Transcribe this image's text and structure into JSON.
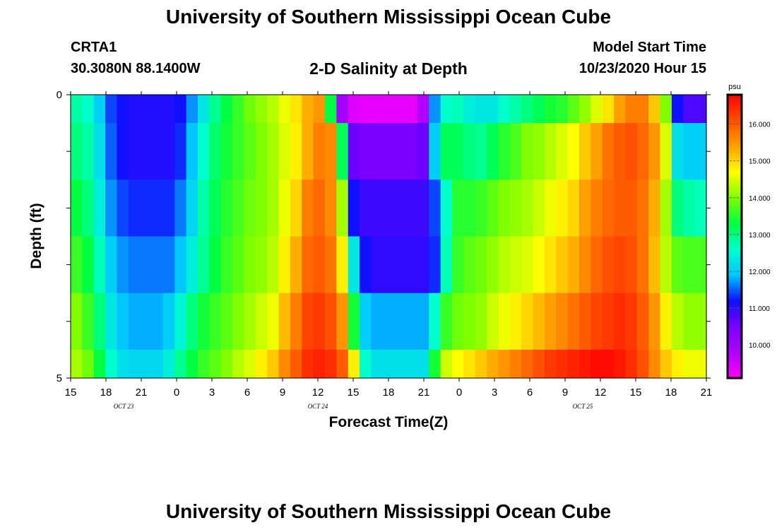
{
  "page": {
    "title_top": "University of Southern Mississippi Ocean Cube",
    "title_bottom": "University of Southern Mississippi Ocean Cube",
    "station": "CRTA1",
    "coords": "30.3080N 88.1400W",
    "chart_title": "2-D Salinity at Depth",
    "model_start_label": "Model Start Time",
    "model_start_value": "10/23/2020 Hour 15"
  },
  "colors": {
    "scale": [
      "#ff00ff",
      "#b000ff",
      "#7a00ff",
      "#1010ff",
      "#00c8ff",
      "#00ffcc",
      "#00ff40",
      "#80ff00",
      "#ffff00",
      "#ffa000",
      "#ff5000",
      "#ff0000"
    ]
  },
  "chart_data": {
    "type": "heatmap",
    "title": "2-D Salinity at Depth",
    "xlabel": "Forecast Time(Z)",
    "ylabel": "Depth (ft)",
    "x_tick_labels": [
      "15",
      "18",
      "21",
      "0",
      "3",
      "6",
      "9",
      "12",
      "15",
      "18",
      "21",
      "0",
      "3",
      "6",
      "9",
      "12",
      "15",
      "18",
      "21"
    ],
    "x_range_hours": [
      0,
      54
    ],
    "date_labels": [
      {
        "text": "OCT 23",
        "hour": 4.5
      },
      {
        "text": "OCT 24",
        "hour": 21
      },
      {
        "text": "OCT 25",
        "hour": 43.5
      }
    ],
    "y_tick_labels": [
      "0",
      "5"
    ],
    "ylim": [
      0,
      5
    ],
    "colorbar": {
      "unit": "psu",
      "range": [
        9.1,
        16.8
      ],
      "tick_labels": [
        "10.000",
        "11.000",
        "12.000",
        "13.000",
        "14.000",
        "15.000",
        "16.000"
      ],
      "tick_values": [
        10,
        11,
        12,
        13,
        14,
        15,
        16
      ]
    },
    "time_hours": [
      0,
      1,
      2,
      3,
      4,
      5,
      6,
      7,
      8,
      9,
      10,
      11,
      12,
      13,
      14,
      15,
      16,
      17,
      18,
      19,
      20,
      21,
      22,
      23,
      24,
      25,
      26,
      27,
      28,
      29,
      30,
      31,
      32,
      33,
      34,
      35,
      36,
      37,
      38,
      39,
      40,
      41,
      42,
      43,
      44,
      45,
      46,
      47,
      48,
      49,
      50,
      51,
      52,
      53,
      54
    ],
    "layers": [
      {
        "depth": "0.0-0.5",
        "values": [
          12.8,
          12.6,
          12.0,
          11.4,
          11.2,
          11.1,
          11.1,
          11.1,
          11.1,
          11.2,
          11.7,
          12.3,
          12.9,
          13.3,
          13.6,
          13.9,
          14.1,
          14.3,
          14.6,
          14.9,
          15.3,
          15.5,
          13.3,
          10.0,
          9.4,
          9.3,
          9.3,
          9.3,
          9.3,
          9.3,
          9.8,
          11.7,
          12.6,
          12.7,
          12.4,
          12.3,
          12.3,
          12.6,
          12.8,
          13.0,
          13.2,
          13.4,
          13.5,
          13.8,
          14.1,
          14.5,
          14.9,
          15.4,
          15.7,
          15.7,
          15.1,
          14.0,
          11.2,
          10.8,
          10.8
        ]
      },
      {
        "depth": "0.5-1.5",
        "values": [
          13.0,
          12.8,
          12.2,
          11.5,
          11.2,
          11.1,
          11.1,
          11.1,
          11.1,
          11.3,
          11.9,
          12.6,
          13.1,
          13.4,
          13.6,
          13.8,
          14.0,
          14.2,
          14.5,
          14.8,
          15.3,
          15.7,
          15.6,
          13.2,
          10.6,
          10.5,
          10.5,
          10.5,
          10.5,
          10.5,
          10.6,
          12.0,
          13.2,
          13.2,
          13.0,
          12.9,
          13.2,
          13.5,
          13.7,
          14.0,
          14.1,
          14.3,
          14.5,
          14.7,
          15.1,
          15.4,
          15.8,
          16.0,
          16.1,
          15.9,
          15.5,
          14.5,
          12.2,
          12.0,
          12.0
        ]
      },
      {
        "depth": "1.5-2.5",
        "values": [
          13.3,
          13.0,
          12.4,
          11.7,
          11.4,
          11.3,
          11.3,
          11.3,
          11.3,
          11.6,
          12.1,
          12.8,
          13.2,
          13.5,
          13.7,
          13.9,
          14.0,
          14.2,
          14.6,
          15.0,
          15.7,
          15.9,
          15.6,
          14.2,
          11.2,
          10.9,
          10.9,
          10.9,
          10.9,
          10.9,
          10.9,
          11.4,
          12.6,
          13.5,
          13.5,
          13.6,
          13.8,
          14.0,
          14.1,
          14.2,
          14.4,
          14.6,
          14.8,
          15.0,
          15.4,
          15.7,
          15.9,
          16.0,
          16.0,
          15.8,
          15.3,
          14.2,
          13.0,
          12.8,
          12.7
        ]
      },
      {
        "depth": "2.5-3.5",
        "values": [
          13.6,
          13.3,
          12.7,
          12.0,
          11.7,
          11.6,
          11.6,
          11.6,
          11.6,
          11.9,
          12.4,
          12.9,
          13.3,
          13.6,
          13.8,
          14.0,
          14.1,
          14.3,
          14.8,
          15.3,
          15.9,
          16.0,
          15.8,
          14.8,
          12.3,
          11.2,
          11.0,
          11.0,
          11.0,
          11.0,
          11.0,
          11.3,
          12.7,
          13.6,
          13.8,
          13.9,
          14.1,
          14.3,
          14.4,
          14.5,
          14.7,
          14.9,
          15.1,
          15.3,
          15.6,
          15.9,
          16.1,
          16.2,
          16.1,
          15.8,
          15.2,
          14.3,
          13.8,
          13.7,
          13.7
        ]
      },
      {
        "depth": "3.5-4.5",
        "values": [
          14.0,
          13.6,
          13.0,
          12.3,
          11.9,
          11.8,
          11.8,
          11.8,
          12.0,
          12.5,
          13.0,
          13.4,
          13.6,
          13.8,
          14.0,
          14.2,
          14.4,
          14.6,
          15.2,
          15.7,
          16.2,
          16.3,
          16.1,
          15.5,
          13.4,
          12.0,
          11.8,
          11.8,
          11.8,
          11.8,
          11.8,
          12.6,
          13.6,
          13.9,
          14.0,
          14.1,
          14.4,
          14.6,
          14.8,
          15.0,
          15.2,
          15.4,
          15.6,
          15.8,
          16.0,
          16.2,
          16.3,
          16.4,
          16.3,
          16.0,
          15.5,
          14.8,
          14.3,
          14.1,
          14.1
        ]
      },
      {
        "depth": "4.5-5.0",
        "values": [
          14.2,
          13.9,
          13.3,
          12.6,
          12.2,
          12.1,
          12.1,
          12.1,
          12.4,
          12.9,
          13.3,
          13.6,
          13.8,
          14.0,
          14.3,
          14.5,
          14.8,
          15.1,
          15.6,
          16.0,
          16.4,
          16.5,
          16.4,
          16.0,
          14.8,
          12.6,
          12.2,
          12.2,
          12.2,
          12.2,
          12.2,
          13.4,
          14.4,
          14.7,
          14.9,
          15.1,
          15.3,
          15.5,
          15.7,
          15.9,
          16.1,
          16.3,
          16.4,
          16.5,
          16.6,
          16.7,
          16.7,
          16.6,
          16.4,
          16.1,
          15.6,
          15.1,
          14.8,
          14.6,
          14.6
        ]
      }
    ]
  }
}
